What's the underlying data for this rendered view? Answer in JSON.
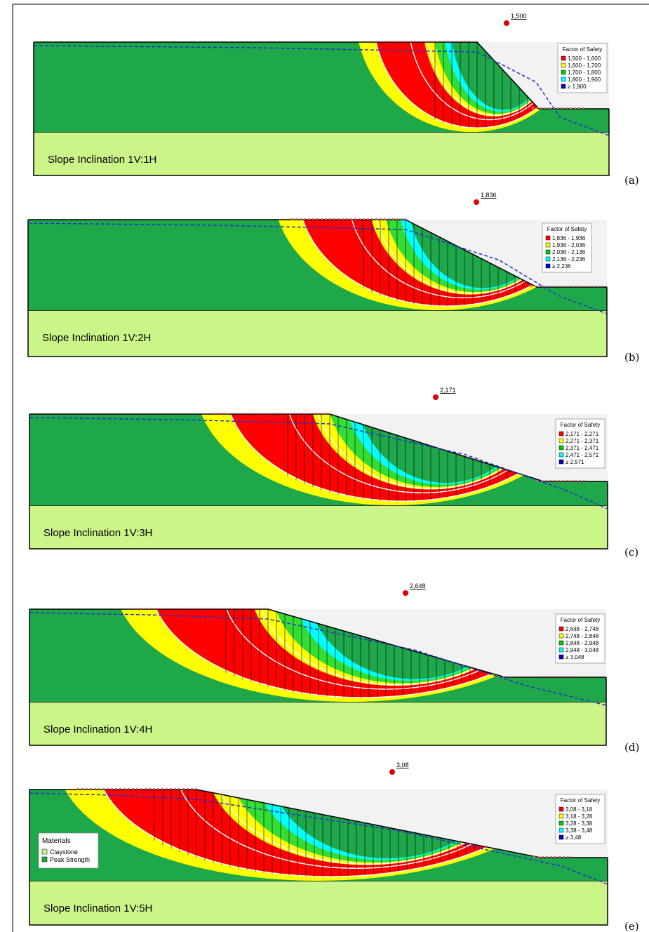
{
  "panels": [
    {
      "label": "(a)",
      "fos": "1,500",
      "legend_title": "Factor of Safety",
      "inclination": "Slope Inclination 1V:1H",
      "legend": [
        {
          "text": "1,500 - 1,600",
          "color": "#ff0000"
        },
        {
          "text": "1,600 - 1,700",
          "color": "#ffff00"
        },
        {
          "text": "1,700 - 1,800",
          "color": "#00cc00"
        },
        {
          "text": "1,800 - 1,900",
          "color": "#00ffff"
        },
        {
          "text": "≥ 1,900",
          "color": "#0000cc"
        }
      ]
    },
    {
      "label": "(b)",
      "fos": "1,836",
      "legend_title": "Factor of Safety",
      "inclination": "Slope Inclination 1V:2H",
      "legend": [
        {
          "text": "1,836 - 1,936",
          "color": "#ff0000"
        },
        {
          "text": "1,936 - 2,036",
          "color": "#ffff00"
        },
        {
          "text": "2,036 - 2,136",
          "color": "#00cc00"
        },
        {
          "text": "2,136 - 2,236",
          "color": "#00ffff"
        },
        {
          "text": "≥ 2,236",
          "color": "#0000cc"
        }
      ]
    },
    {
      "label": "(c)",
      "fos": "2,171",
      "legend_title": "Factor of Safety",
      "inclination": "Slope Inclination 1V:3H",
      "legend": [
        {
          "text": "2,171 - 2,271",
          "color": "#ff0000"
        },
        {
          "text": "2,271 - 2,371",
          "color": "#ffff00"
        },
        {
          "text": "2,371 - 2,471",
          "color": "#00cc00"
        },
        {
          "text": "2,471 - 2,571",
          "color": "#00ffff"
        },
        {
          "text": "≥ 2,571",
          "color": "#0000cc"
        }
      ]
    },
    {
      "label": "(d)",
      "fos": "2,648",
      "legend_title": "Factor of Safety",
      "inclination": "Slope Inclination 1V:4H",
      "legend": [
        {
          "text": "2,648 - 2,748",
          "color": "#ff0000"
        },
        {
          "text": "2,748 - 2,848",
          "color": "#ffff00"
        },
        {
          "text": "2,848 - 2,948",
          "color": "#00cc00"
        },
        {
          "text": "2,948 - 3,048",
          "color": "#00ffff"
        },
        {
          "text": "≥ 3,048",
          "color": "#0000cc"
        }
      ]
    },
    {
      "label": "(e)",
      "fos": "3,08",
      "legend_title": "Factor of Safety",
      "inclination": "Slope Inclination 1V:5H",
      "legend": [
        {
          "text": "3,08 - 3,18",
          "color": "#ff0000"
        },
        {
          "text": "3,18 - 3,28",
          "color": "#ffff00"
        },
        {
          "text": "3,28 - 3,38",
          "color": "#00cc00"
        },
        {
          "text": "3,38 - 3,48",
          "color": "#00ffff"
        },
        {
          "text": "≥ 3,48",
          "color": "#0000cc"
        }
      ]
    }
  ],
  "materials": {
    "title": "Materials",
    "items": [
      {
        "text": "Claystone",
        "color": "#ccf589"
      },
      {
        "text": "Peak Strength",
        "color": "#1ea84a"
      }
    ]
  }
}
